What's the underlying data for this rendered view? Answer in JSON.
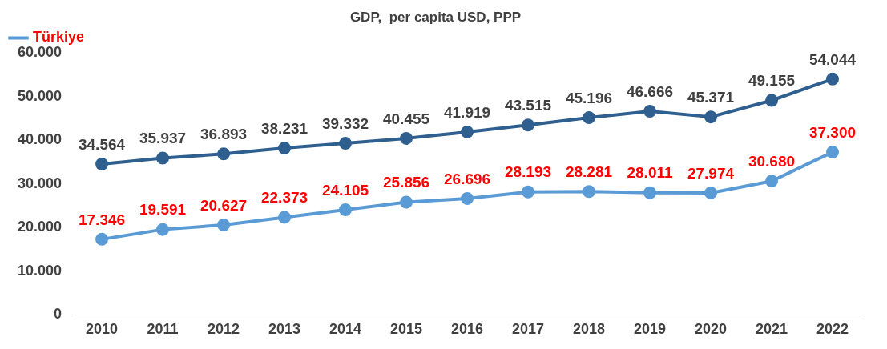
{
  "chart_data": {
    "type": "line",
    "title": "GDP,  per capita USD, PPP",
    "categories": [
      "2010",
      "2011",
      "2012",
      "2013",
      "2014",
      "2015",
      "2016",
      "2017",
      "2018",
      "2019",
      "2020",
      "2021",
      "2022"
    ],
    "series": [
      {
        "color": "#2e5f8f",
        "values": [
          34564,
          35937,
          36893,
          38231,
          39332,
          40455,
          41919,
          43515,
          45196,
          46666,
          45371,
          49155,
          54044
        ],
        "value_labels": [
          "34.564",
          "35.937",
          "36.893",
          "38.231",
          "39.332",
          "40.455",
          "41.919",
          "43.515",
          "45.196",
          "46.666",
          "45.371",
          "49.155",
          "54.044"
        ]
      },
      {
        "name": "Türkiye",
        "color": "#5b9bd5",
        "values": [
          17346,
          19591,
          20627,
          22373,
          24105,
          25856,
          26696,
          28193,
          28281,
          28011,
          27974,
          30680,
          37300
        ],
        "value_labels": [
          "17.346",
          "19.591",
          "20.627",
          "22.373",
          "24.105",
          "25.856",
          "26.696",
          "28.193",
          "28.281",
          "28.011",
          "27.974",
          "30.680",
          "37.300"
        ]
      }
    ],
    "ylim": [
      0,
      60000
    ],
    "yticks": [
      0,
      {
        "value": 10000,
        "label": "10.000"
      },
      {
        "value": 20000,
        "label": "20.000"
      },
      {
        "value": 30000,
        "label": "30.000"
      },
      {
        "value": 40000,
        "label": "40.000"
      },
      {
        "value": 50000,
        "label": "50.000"
      },
      {
        "value": 60000,
        "label": "60.000"
      }
    ],
    "grid": false,
    "legend": "top left",
    "marker": "circle",
    "line_style": "solid"
  }
}
